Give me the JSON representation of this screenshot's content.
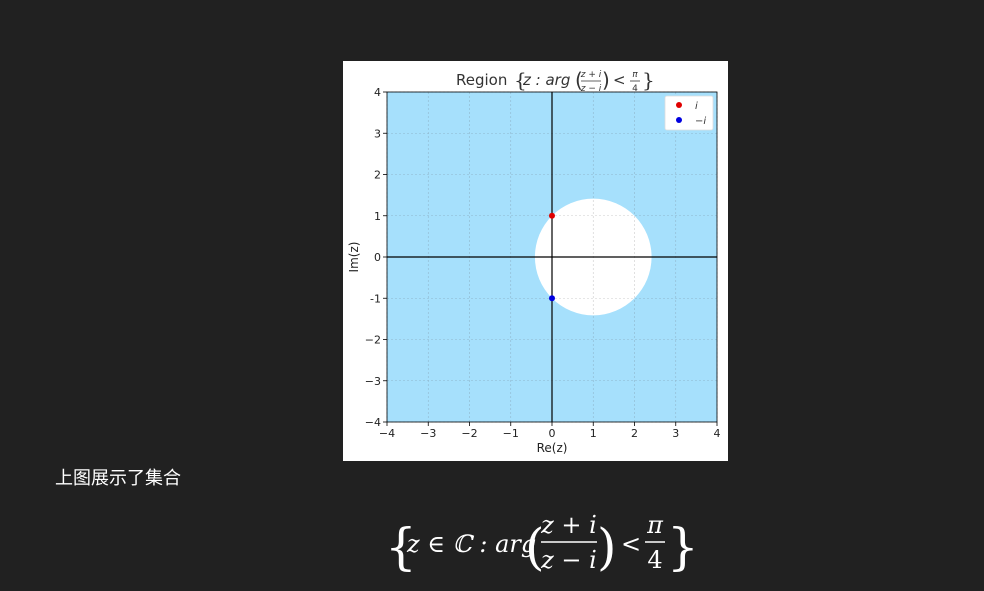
{
  "message": {
    "caption": "上图展示了集合",
    "formula": {
      "lhs": "z ∈ ℂ : arg",
      "numerator": "z + i",
      "denominator": "z − i",
      "relation": "<",
      "rhs_numerator": "π",
      "rhs_denominator": "4"
    }
  },
  "chart_data": {
    "type": "scatter",
    "title": {
      "prefix": "Region",
      "set_lead": "z : arg",
      "numerator": "z + i",
      "denominator": "z − i",
      "relation": "<",
      "rhs_numerator": "π",
      "rhs_denominator": "4"
    },
    "xlabel": "Re(z)",
    "ylabel": "Im(z)",
    "xlim": [
      -4,
      4
    ],
    "ylim": [
      -4,
      4
    ],
    "x_ticks": [
      "−4",
      "−3",
      "−2",
      "−1",
      "0",
      "1",
      "2",
      "3",
      "4"
    ],
    "y_ticks": [
      "4",
      "3",
      "2",
      "1",
      "0",
      "-1",
      "−2",
      "−3",
      "−4"
    ],
    "grid": true,
    "legend_position": "top-right",
    "region": {
      "color": "#a6e0fc",
      "excluded_disk": {
        "center": [
          1,
          0
        ],
        "radius": 1.414
      }
    },
    "series": [
      {
        "name": "i",
        "x": [
          0
        ],
        "y": [
          1
        ],
        "color": "#e00000"
      },
      {
        "name": "−i",
        "x": [
          0
        ],
        "y": [
          -1
        ],
        "color": "#0000e0"
      }
    ]
  }
}
